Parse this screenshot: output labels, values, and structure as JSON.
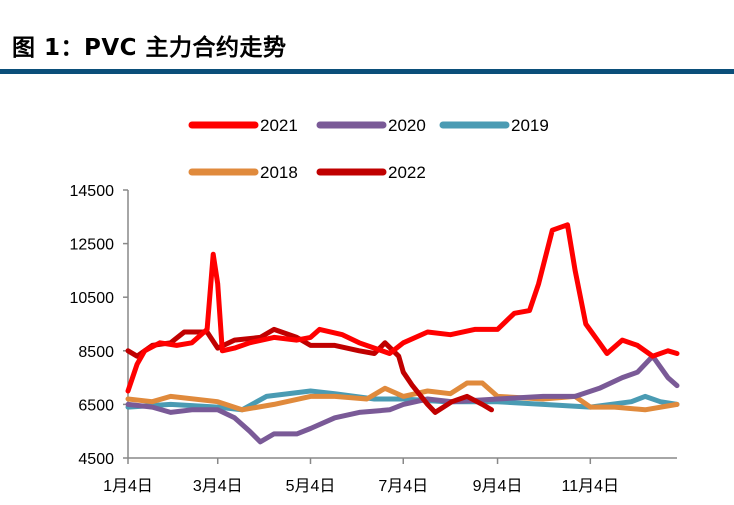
{
  "title": "图 1：PVC 主力合约走势",
  "chart_data": {
    "type": "line",
    "title": "图 1：PVC 主力合约走势",
    "xlabel": "",
    "ylabel": "",
    "ylim": [
      4500,
      14500
    ],
    "yticks": [
      "4500",
      "6500",
      "8500",
      "10500",
      "12500",
      "14500"
    ],
    "xticks": [
      {
        "date": "01-04",
        "label": "1月4日"
      },
      {
        "date": "03-04",
        "label": "3月4日"
      },
      {
        "date": "05-04",
        "label": "5月4日"
      },
      {
        "date": "07-04",
        "label": "7月4日"
      },
      {
        "date": "09-04",
        "label": "9月4日"
      },
      {
        "date": "11-04",
        "label": "11月4日"
      }
    ],
    "xlim": [
      "01-04",
      "12-31"
    ],
    "grid": false,
    "legend_placement": "top",
    "series": [
      {
        "name": "2021",
        "color": "#ff0000",
        "points": [
          [
            "01-04",
            7000
          ],
          [
            "01-10",
            8000
          ],
          [
            "01-15",
            8500
          ],
          [
            "01-25",
            8800
          ],
          [
            "02-05",
            8700
          ],
          [
            "02-15",
            8800
          ],
          [
            "02-25",
            9300
          ],
          [
            "03-01",
            12100
          ],
          [
            "03-04",
            11000
          ],
          [
            "03-07",
            8500
          ],
          [
            "03-15",
            8600
          ],
          [
            "03-25",
            8800
          ],
          [
            "04-10",
            9000
          ],
          [
            "04-25",
            8900
          ],
          [
            "05-04",
            9000
          ],
          [
            "05-10",
            9300
          ],
          [
            "05-25",
            9100
          ],
          [
            "06-05",
            8800
          ],
          [
            "06-15",
            8600
          ],
          [
            "06-25",
            8400
          ],
          [
            "07-04",
            8800
          ],
          [
            "07-20",
            9200
          ],
          [
            "08-04",
            9100
          ],
          [
            "08-20",
            9300
          ],
          [
            "09-04",
            9300
          ],
          [
            "09-15",
            9900
          ],
          [
            "09-25",
            10000
          ],
          [
            "10-01",
            11000
          ],
          [
            "10-10",
            13000
          ],
          [
            "10-20",
            13200
          ],
          [
            "10-25",
            11500
          ],
          [
            "11-01",
            9500
          ],
          [
            "11-10",
            8800
          ],
          [
            "11-15",
            8400
          ],
          [
            "11-25",
            8900
          ],
          [
            "12-05",
            8700
          ],
          [
            "12-15",
            8300
          ],
          [
            "12-25",
            8500
          ],
          [
            "12-31",
            8400
          ]
        ]
      },
      {
        "name": "2020",
        "color": "#7a5a97",
        "points": [
          [
            "01-04",
            6500
          ],
          [
            "01-20",
            6400
          ],
          [
            "02-01",
            6200
          ],
          [
            "02-15",
            6300
          ],
          [
            "03-04",
            6300
          ],
          [
            "03-15",
            6000
          ],
          [
            "03-25",
            5500
          ],
          [
            "04-01",
            5100
          ],
          [
            "04-10",
            5400
          ],
          [
            "04-25",
            5400
          ],
          [
            "05-04",
            5600
          ],
          [
            "05-20",
            6000
          ],
          [
            "06-05",
            6200
          ],
          [
            "06-25",
            6300
          ],
          [
            "07-04",
            6500
          ],
          [
            "07-20",
            6700
          ],
          [
            "08-05",
            6600
          ],
          [
            "09-04",
            6700
          ],
          [
            "10-04",
            6800
          ],
          [
            "10-25",
            6800
          ],
          [
            "11-10",
            7100
          ],
          [
            "11-25",
            7500
          ],
          [
            "12-05",
            7700
          ],
          [
            "12-15",
            8300
          ],
          [
            "12-25",
            7500
          ],
          [
            "12-31",
            7200
          ]
        ]
      },
      {
        "name": "2019",
        "color": "#4a9bb3",
        "points": [
          [
            "01-04",
            6400
          ],
          [
            "02-01",
            6500
          ],
          [
            "03-04",
            6400
          ],
          [
            "03-20",
            6300
          ],
          [
            "04-05",
            6800
          ],
          [
            "05-04",
            7000
          ],
          [
            "05-20",
            6900
          ],
          [
            "06-15",
            6700
          ],
          [
            "07-04",
            6700
          ],
          [
            "08-01",
            6600
          ],
          [
            "09-04",
            6600
          ],
          [
            "10-04",
            6500
          ],
          [
            "11-04",
            6400
          ],
          [
            "12-01",
            6600
          ],
          [
            "12-10",
            6800
          ],
          [
            "12-20",
            6600
          ],
          [
            "12-31",
            6500
          ]
        ]
      },
      {
        "name": "2018",
        "color": "#e08a3c",
        "points": [
          [
            "01-04",
            6700
          ],
          [
            "01-20",
            6600
          ],
          [
            "02-01",
            6800
          ],
          [
            "03-04",
            6600
          ],
          [
            "03-20",
            6300
          ],
          [
            "04-10",
            6500
          ],
          [
            "05-04",
            6800
          ],
          [
            "05-20",
            6800
          ],
          [
            "06-10",
            6700
          ],
          [
            "06-22",
            7100
          ],
          [
            "07-04",
            6800
          ],
          [
            "07-20",
            7000
          ],
          [
            "08-04",
            6900
          ],
          [
            "08-15",
            7300
          ],
          [
            "08-25",
            7300
          ],
          [
            "09-04",
            6800
          ],
          [
            "10-04",
            6700
          ],
          [
            "10-25",
            6800
          ],
          [
            "11-04",
            6400
          ],
          [
            "11-20",
            6400
          ],
          [
            "12-10",
            6300
          ],
          [
            "12-31",
            6500
          ]
        ]
      },
      {
        "name": "2022",
        "color": "#c00000",
        "points": [
          [
            "01-04",
            8500
          ],
          [
            "01-10",
            8300
          ],
          [
            "01-20",
            8700
          ],
          [
            "02-01",
            8800
          ],
          [
            "02-10",
            9200
          ],
          [
            "02-25",
            9200
          ],
          [
            "03-04",
            8600
          ],
          [
            "03-15",
            8900
          ],
          [
            "04-01",
            9000
          ],
          [
            "04-10",
            9300
          ],
          [
            "04-25",
            9000
          ],
          [
            "05-04",
            8700
          ],
          [
            "05-20",
            8700
          ],
          [
            "06-05",
            8500
          ],
          [
            "06-15",
            8400
          ],
          [
            "06-22",
            8800
          ],
          [
            "07-01",
            8300
          ],
          [
            "07-04",
            7700
          ],
          [
            "07-10",
            7200
          ],
          [
            "07-20",
            6500
          ],
          [
            "07-25",
            6200
          ],
          [
            "08-05",
            6600
          ],
          [
            "08-15",
            6800
          ],
          [
            "08-25",
            6500
          ],
          [
            "08-31",
            6300
          ]
        ]
      }
    ]
  }
}
